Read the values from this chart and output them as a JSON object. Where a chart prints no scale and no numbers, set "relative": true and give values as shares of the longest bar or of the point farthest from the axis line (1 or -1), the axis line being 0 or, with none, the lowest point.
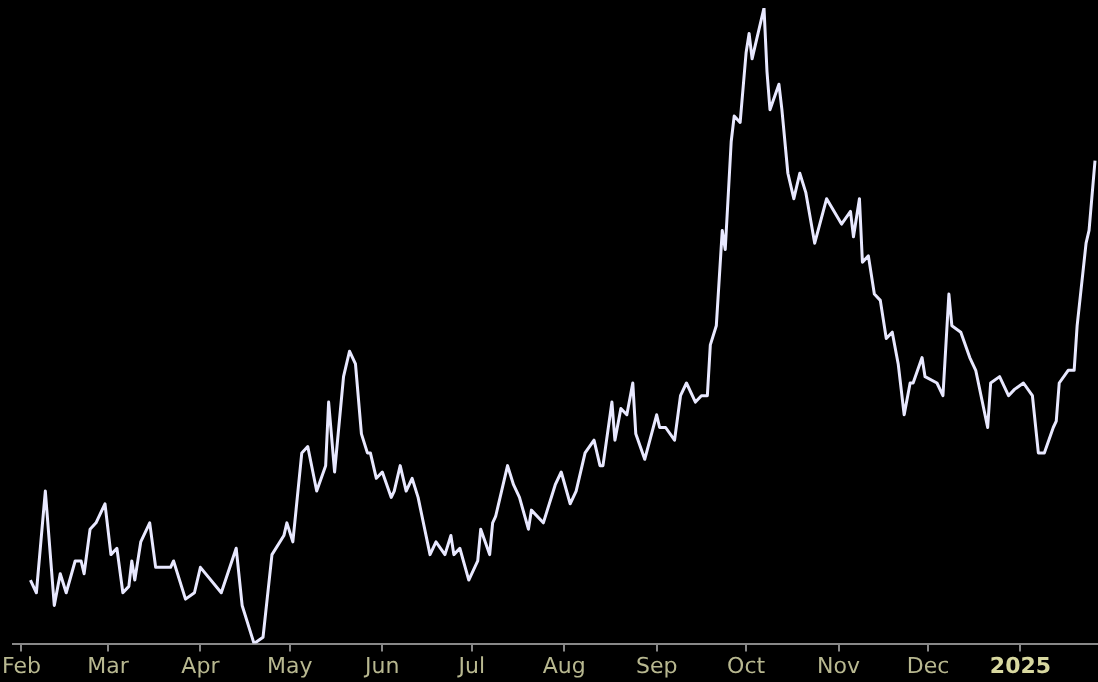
{
  "chart_data": {
    "type": "line",
    "relative": true,
    "x": [
      "2024-02-04",
      "2024-02-06",
      "2024-02-09",
      "2024-02-12",
      "2024-02-14",
      "2024-02-16",
      "2024-02-19",
      "2024-02-21",
      "2024-02-22",
      "2024-02-24",
      "2024-02-26",
      "2024-02-29",
      "2024-03-02",
      "2024-03-04",
      "2024-03-06",
      "2024-03-08",
      "2024-03-09",
      "2024-03-10",
      "2024-03-12",
      "2024-03-15",
      "2024-03-17",
      "2024-03-22",
      "2024-03-23",
      "2024-03-27",
      "2024-03-30",
      "2024-04-01",
      "2024-04-08",
      "2024-04-13",
      "2024-04-15",
      "2024-04-19",
      "2024-04-22",
      "2024-04-25",
      "2024-04-29",
      "2024-04-30",
      "2024-05-02",
      "2024-05-05",
      "2024-05-07",
      "2024-05-10",
      "2024-05-13",
      "2024-05-14",
      "2024-05-16",
      "2024-05-19",
      "2024-05-21",
      "2024-05-23",
      "2024-05-25",
      "2024-05-27",
      "2024-05-28",
      "2024-05-30",
      "2024-06-01",
      "2024-06-04",
      "2024-06-05",
      "2024-06-07",
      "2024-06-09",
      "2024-06-11",
      "2024-06-13",
      "2024-06-17",
      "2024-06-19",
      "2024-06-22",
      "2024-06-24",
      "2024-06-25",
      "2024-06-27",
      "2024-06-30",
      "2024-07-03",
      "2024-07-04",
      "2024-07-07",
      "2024-07-08",
      "2024-07-09",
      "2024-07-13",
      "2024-07-15",
      "2024-07-17",
      "2024-07-20",
      "2024-07-21",
      "2024-07-25",
      "2024-07-29",
      "2024-07-31",
      "2024-08-03",
      "2024-08-05",
      "2024-08-08",
      "2024-08-11",
      "2024-08-13",
      "2024-08-14",
      "2024-08-17",
      "2024-08-18",
      "2024-08-20",
      "2024-08-22",
      "2024-08-24",
      "2024-08-25",
      "2024-08-28",
      "2024-09-01",
      "2024-09-02",
      "2024-09-04",
      "2024-09-07",
      "2024-09-09",
      "2024-09-11",
      "2024-09-14",
      "2024-09-16",
      "2024-09-18",
      "2024-09-19",
      "2024-09-21",
      "2024-09-23",
      "2024-09-24",
      "2024-09-26",
      "2024-09-27",
      "2024-09-29",
      "2024-10-01",
      "2024-10-02",
      "2024-10-03",
      "2024-10-07",
      "2024-10-08",
      "2024-10-09",
      "2024-10-12",
      "2024-10-13",
      "2024-10-15",
      "2024-10-17",
      "2024-10-19",
      "2024-10-21",
      "2024-10-24",
      "2024-10-28",
      "2024-11-02",
      "2024-11-05",
      "2024-11-06",
      "2024-11-08",
      "2024-11-09",
      "2024-11-11",
      "2024-11-13",
      "2024-11-15",
      "2024-11-17",
      "2024-11-19",
      "2024-11-21",
      "2024-11-23",
      "2024-11-25",
      "2024-11-26",
      "2024-11-29",
      "2024-11-30",
      "2024-12-04",
      "2024-12-06",
      "2024-12-08",
      "2024-12-09",
      "2024-12-12",
      "2024-12-15",
      "2024-12-17",
      "2024-12-21",
      "2024-12-22",
      "2024-12-25",
      "2024-12-28",
      "2024-12-30",
      "2025-01-02",
      "2025-01-05",
      "2025-01-07",
      "2025-01-09",
      "2025-01-12",
      "2025-01-13",
      "2025-01-14",
      "2025-01-17",
      "2025-01-19",
      "2025-01-20",
      "2025-01-23",
      "2025-01-24",
      "2025-01-26"
    ],
    "values": [
      0.1,
      0.08,
      0.24,
      0.06,
      0.11,
      0.08,
      0.13,
      0.13,
      0.11,
      0.18,
      0.19,
      0.22,
      0.14,
      0.15,
      0.08,
      0.09,
      0.13,
      0.1,
      0.16,
      0.19,
      0.12,
      0.12,
      0.13,
      0.07,
      0.08,
      0.12,
      0.08,
      0.15,
      0.06,
      0.0,
      0.01,
      0.14,
      0.17,
      0.19,
      0.16,
      0.3,
      0.31,
      0.24,
      0.28,
      0.38,
      0.27,
      0.42,
      0.46,
      0.44,
      0.33,
      0.3,
      0.3,
      0.26,
      0.27,
      0.23,
      0.24,
      0.28,
      0.24,
      0.26,
      0.23,
      0.14,
      0.16,
      0.14,
      0.17,
      0.14,
      0.15,
      0.1,
      0.13,
      0.18,
      0.14,
      0.19,
      0.2,
      0.28,
      0.25,
      0.23,
      0.18,
      0.21,
      0.19,
      0.25,
      0.27,
      0.22,
      0.24,
      0.3,
      0.32,
      0.28,
      0.28,
      0.38,
      0.32,
      0.37,
      0.36,
      0.41,
      0.33,
      0.29,
      0.36,
      0.34,
      0.34,
      0.32,
      0.39,
      0.41,
      0.38,
      0.39,
      0.39,
      0.47,
      0.5,
      0.65,
      0.62,
      0.79,
      0.83,
      0.82,
      0.93,
      0.96,
      0.92,
      1.0,
      0.9,
      0.84,
      0.88,
      0.84,
      0.74,
      0.7,
      0.74,
      0.71,
      0.63,
      0.7,
      0.66,
      0.68,
      0.64,
      0.7,
      0.6,
      0.61,
      0.55,
      0.54,
      0.48,
      0.49,
      0.44,
      0.36,
      0.41,
      0.41,
      0.45,
      0.42,
      0.41,
      0.39,
      0.55,
      0.5,
      0.49,
      0.45,
      0.43,
      0.34,
      0.41,
      0.42,
      0.39,
      0.4,
      0.41,
      0.39,
      0.3,
      0.3,
      0.34,
      0.35,
      0.41,
      0.43,
      0.43,
      0.5,
      0.63,
      0.65,
      0.76
    ],
    "color": "#e8e8ff",
    "xlim": [
      "2024-01-29",
      "2025-01-27"
    ],
    "xticks": [
      {
        "value": "2024-02-01",
        "label": "Feb"
      },
      {
        "value": "2024-03-01",
        "label": "Mar"
      },
      {
        "value": "2024-04-01",
        "label": "Apr"
      },
      {
        "value": "2024-05-01",
        "label": "May"
      },
      {
        "value": "2024-06-01",
        "label": "Jun"
      },
      {
        "value": "2024-07-01",
        "label": "Jul"
      },
      {
        "value": "2024-08-01",
        "label": "Aug"
      },
      {
        "value": "2024-09-01",
        "label": "Sep"
      },
      {
        "value": "2024-10-01",
        "label": "Oct"
      },
      {
        "value": "2024-11-01",
        "label": "Nov"
      },
      {
        "value": "2024-12-01",
        "label": "Dec"
      },
      {
        "value": "2025-01-01",
        "label": "2025"
      }
    ],
    "grid": false,
    "legend": false,
    "marker": "none",
    "line_style": "solid"
  }
}
